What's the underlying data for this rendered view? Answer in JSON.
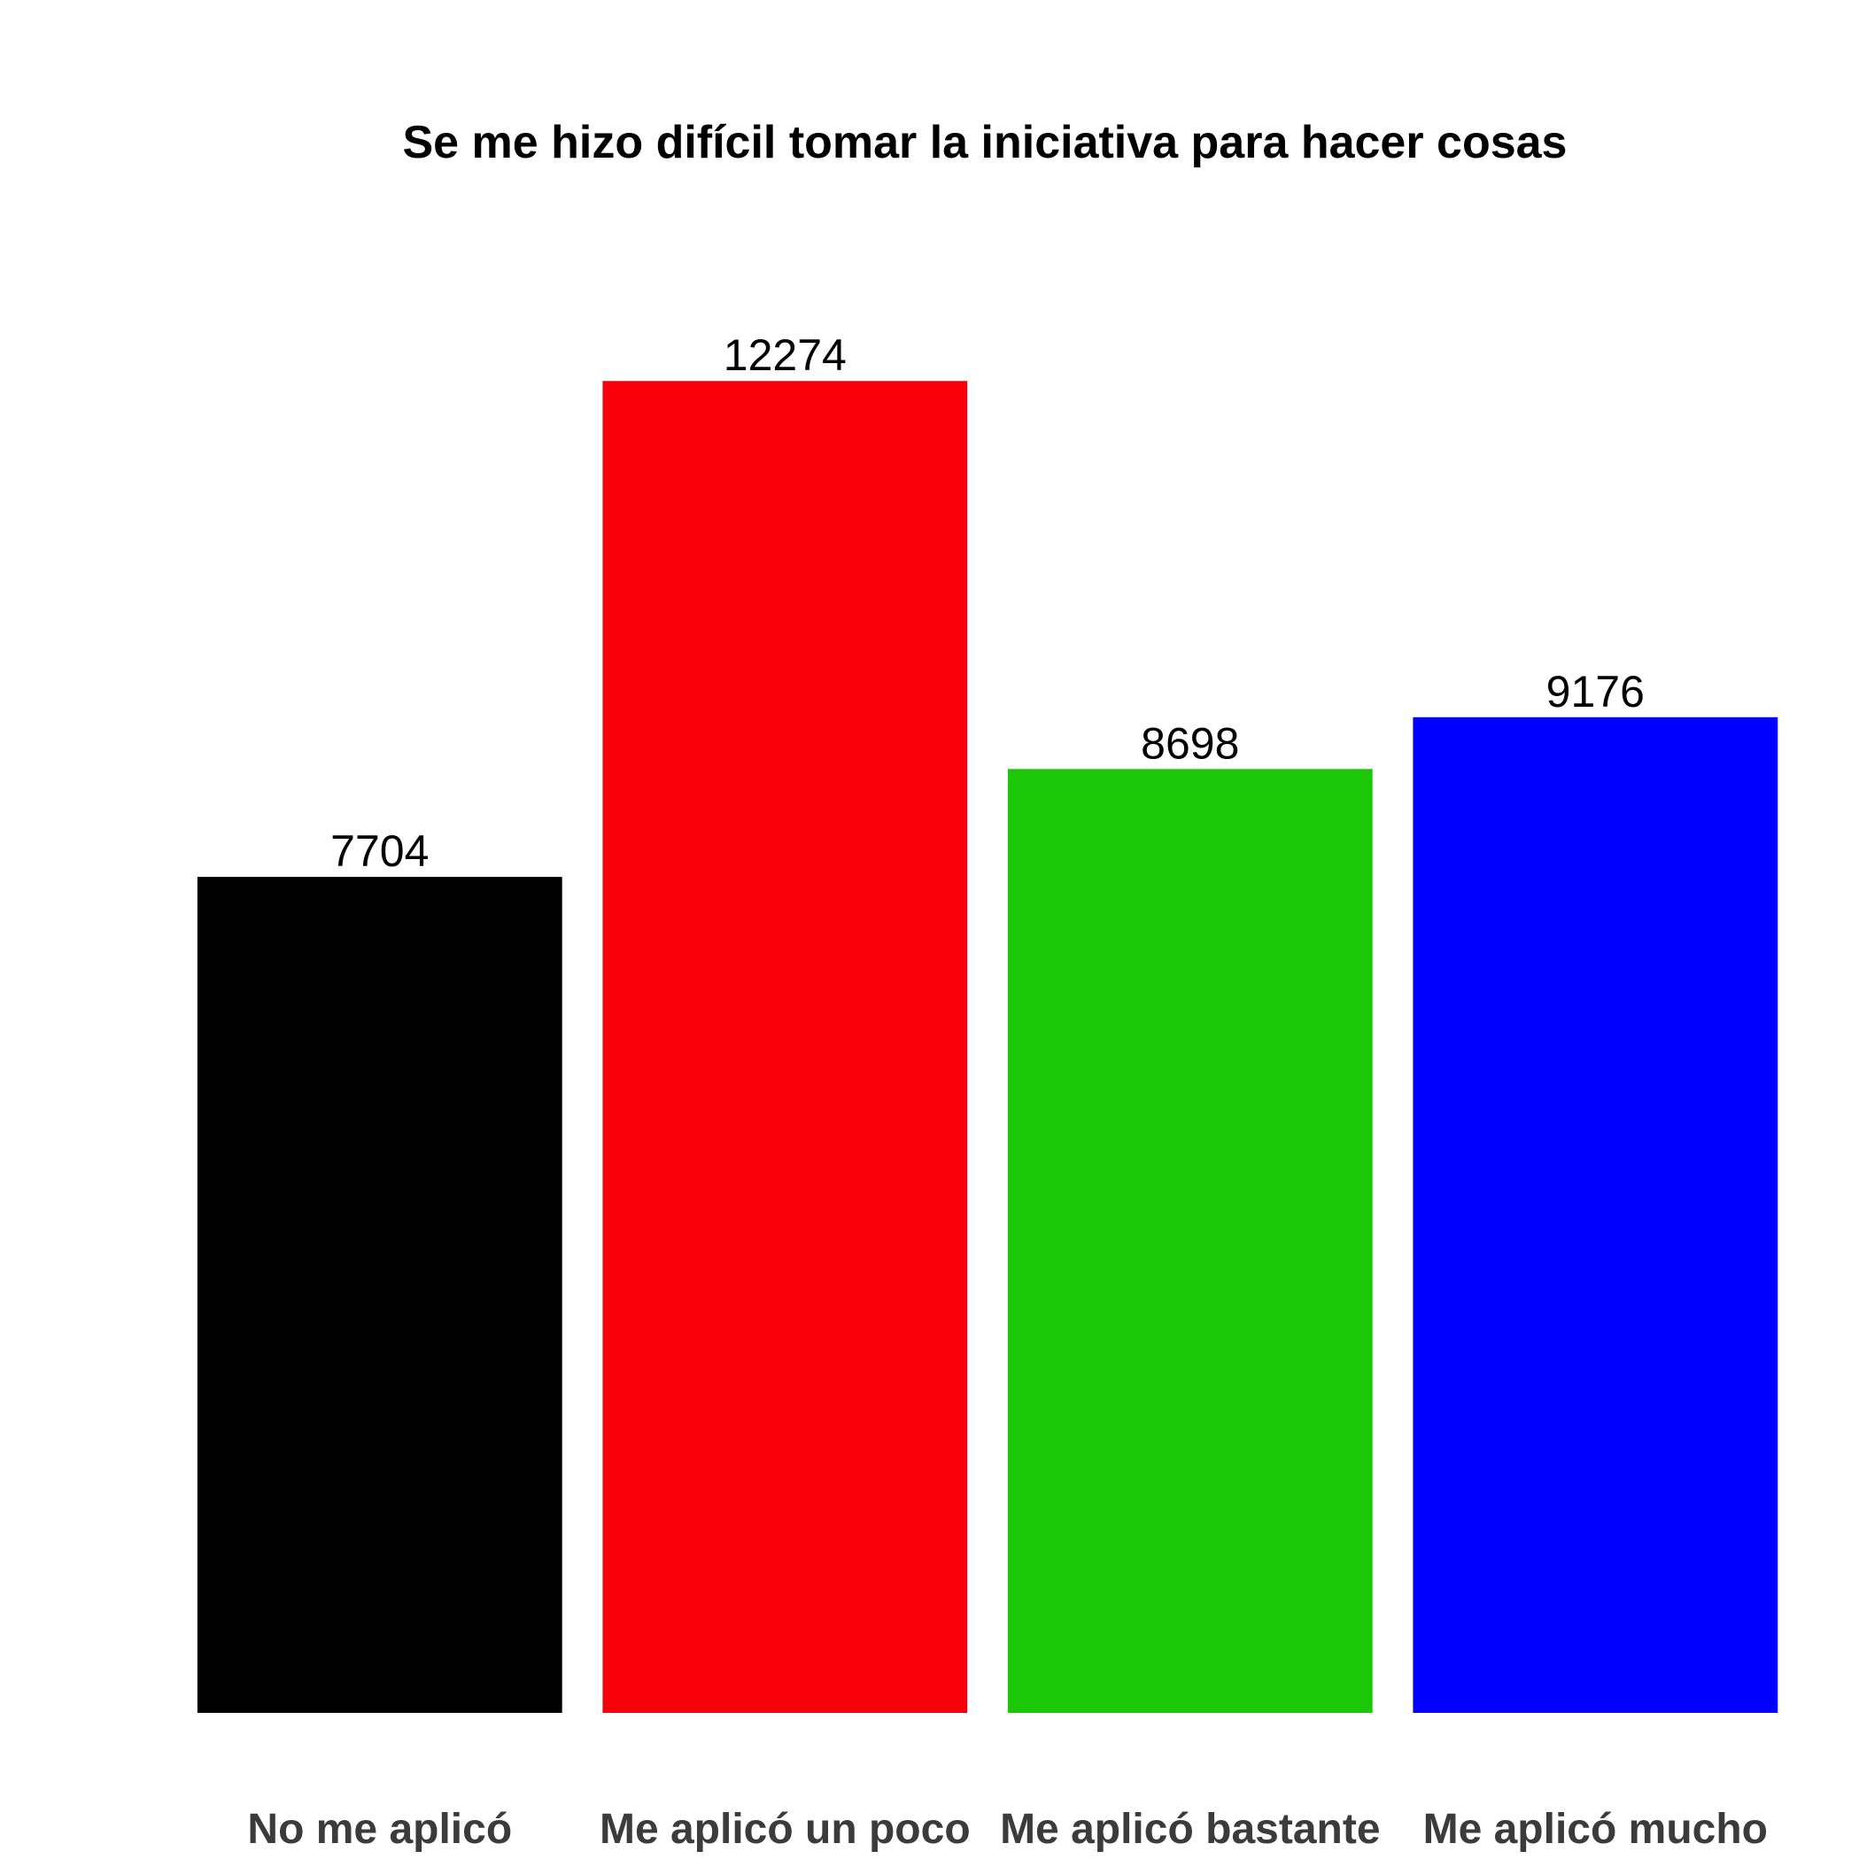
{
  "chart_data": {
    "type": "bar",
    "title": "Se me hizo difícil tomar la iniciativa para hacer cosas",
    "xlabel": "",
    "ylabel": "",
    "categories": [
      "No me aplicó",
      "Me aplicó un poco",
      "Me aplicó bastante",
      "Me aplicó mucho"
    ],
    "values": [
      7704,
      12274,
      8698,
      9176
    ],
    "colors": [
      "#000000",
      "#f8000a",
      "#1ac808",
      "#0000ff"
    ],
    "ylim": [
      0,
      13500
    ],
    "grid": false,
    "legend": "none",
    "show_value_labels": true
  }
}
